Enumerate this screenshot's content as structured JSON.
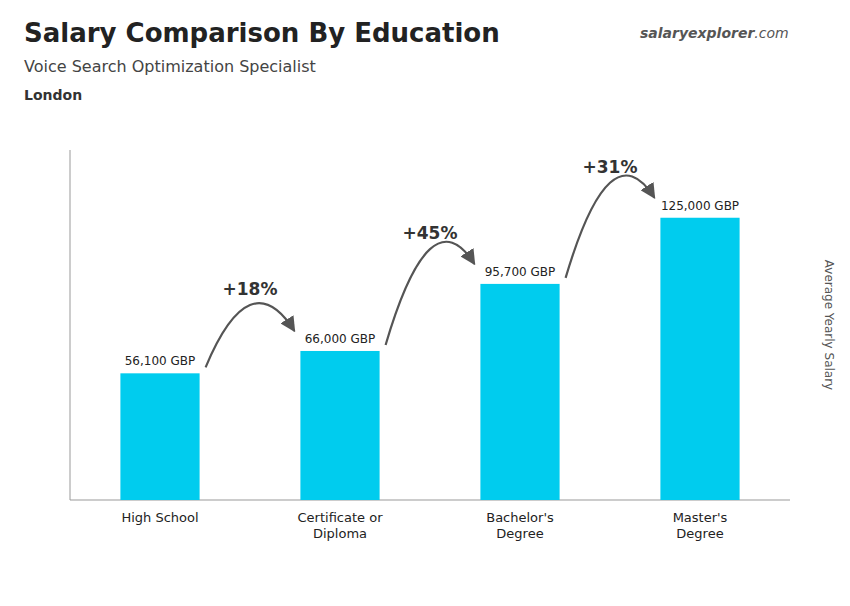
{
  "chart_data": {
    "type": "bar",
    "title": "Salary Comparison By Education",
    "subtitle": "Voice Search Optimization Specialist",
    "ylabel": "Average Yearly Salary",
    "annotations": {
      "location": "London",
      "watermark": [
        "salary",
        "explorer",
        ".com"
      ],
      "changes": [
        "+18%",
        "+45%",
        "+31%"
      ]
    },
    "categories": [
      "High School",
      "Certificate or\nDiploma",
      "Bachelor's\nDegree",
      "Master's\nDegree"
    ],
    "values": [
      56100,
      66000,
      95700,
      125000
    ],
    "value_labels": [
      "56,100 GBP",
      "66,000 GBP",
      "95,700 GBP",
      "125,000 GBP"
    ],
    "data_labels": true,
    "color": "#00ccee",
    "ylim": [
      0,
      155000
    ],
    "tick_labels": "x"
  }
}
